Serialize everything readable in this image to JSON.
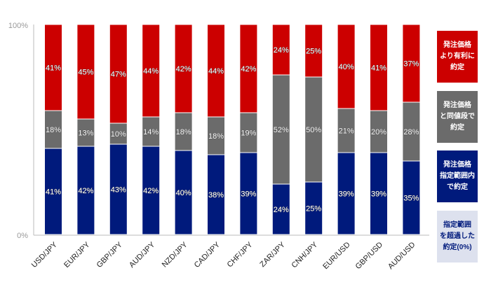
{
  "chart_data": {
    "type": "bar",
    "stacked": true,
    "percent_stacked": true,
    "categories": [
      "USD/JPY",
      "EUR/JPY",
      "GBP/JPY",
      "AUD/JPY",
      "NZD/JPY",
      "CAD/JPY",
      "CHF/JPY",
      "ZAR/JPY",
      "CNH/JPY",
      "EUR/USD",
      "GBP/USD",
      "AUD/USD"
    ],
    "series": [
      {
        "name": "発注価格\n指定範囲内\nで約定",
        "color": "#001a7c",
        "values": [
          41,
          42,
          43,
          42,
          40,
          38,
          39,
          24,
          25,
          39,
          39,
          35
        ]
      },
      {
        "name": "発注価格\nと同値段で\n約定",
        "color": "#6b6b6b",
        "values": [
          18,
          13,
          10,
          14,
          18,
          18,
          19,
          52,
          50,
          21,
          20,
          28
        ]
      },
      {
        "name": "発注価格\nより有利に\n約定",
        "color": "#cc0000",
        "values": [
          41,
          45,
          47,
          44,
          42,
          44,
          42,
          24,
          25,
          40,
          41,
          37
        ]
      }
    ],
    "data_label_suffix": "%",
    "extra_legend": {
      "name": "指定範囲\nを超過した\n約定(0%)",
      "color": "#dde1ee",
      "text_color": "#001a7c"
    },
    "yaxis": {
      "ticks": [
        "0%",
        "100%"
      ]
    },
    "ylim": [
      0,
      100
    ],
    "legend_position": "right",
    "grid": false,
    "title": "",
    "xlabel": "",
    "ylabel": ""
  }
}
